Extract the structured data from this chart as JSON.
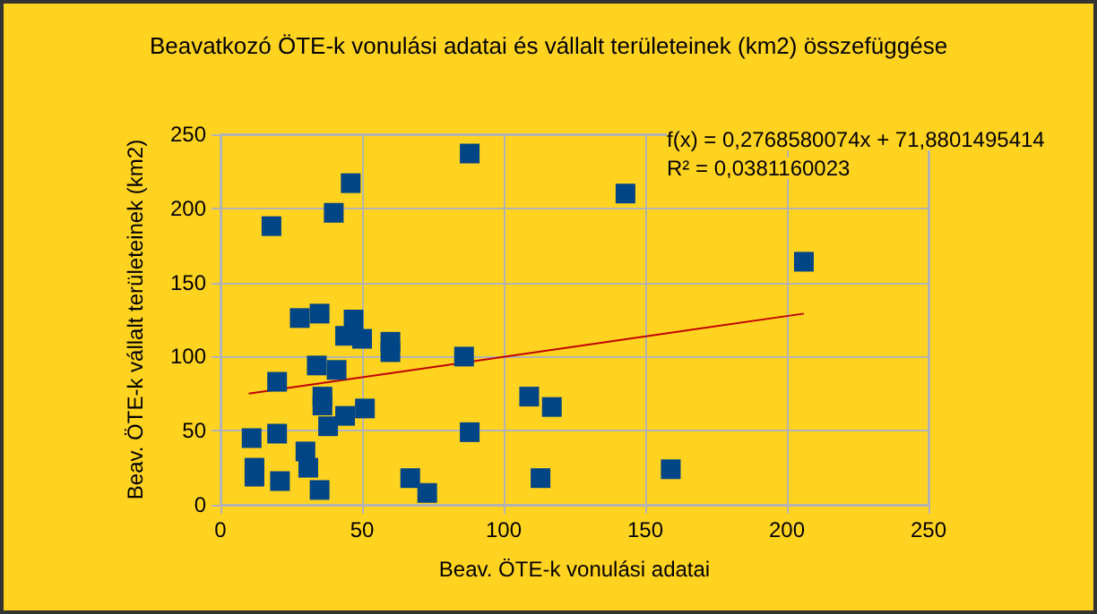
{
  "chart_data": {
    "type": "scatter",
    "title": "Beavatkozó ÖTE-k vonulási adatai és vállalt területeinek (km2) összefüggése",
    "xlabel": "Beav. ÖTE-k vonulási adatai",
    "ylabel": "Beav. ÖTE-k vállalt területeinek (km2)",
    "annotations": [
      "f(x) = 0,2768580074x + 71,8801495414",
      "R² = 0,0381160023"
    ],
    "xlim": [
      0,
      250
    ],
    "xticks": [
      0,
      50,
      100,
      150,
      200,
      250
    ],
    "ylim": [
      0,
      250
    ],
    "yticks": [
      0,
      50,
      100,
      150,
      200,
      250
    ],
    "grid": true,
    "series": [
      {
        "marker": "square",
        "color": "#004586",
        "x": [
          18,
          40,
          46,
          28,
          35,
          47,
          44,
          50,
          60,
          60,
          86,
          34,
          41,
          20,
          36,
          36,
          51,
          44,
          38,
          11,
          20,
          30,
          31,
          12,
          12,
          21,
          35,
          67,
          73,
          88,
          143,
          206,
          109,
          117,
          88,
          113,
          159
        ],
        "values": [
          188,
          197,
          217,
          126,
          129,
          125,
          114,
          112,
          110,
          103,
          100,
          94,
          91,
          83,
          73,
          67,
          65,
          60,
          53,
          45,
          48,
          36,
          25,
          25,
          19,
          16,
          10,
          18,
          8,
          237,
          210,
          164,
          73,
          66,
          49,
          18,
          24
        ]
      },
      {
        "type": "line",
        "marker": "none",
        "color": "#c00000",
        "x": [
          10,
          206
        ],
        "values": [
          75,
          129
        ]
      }
    ]
  }
}
